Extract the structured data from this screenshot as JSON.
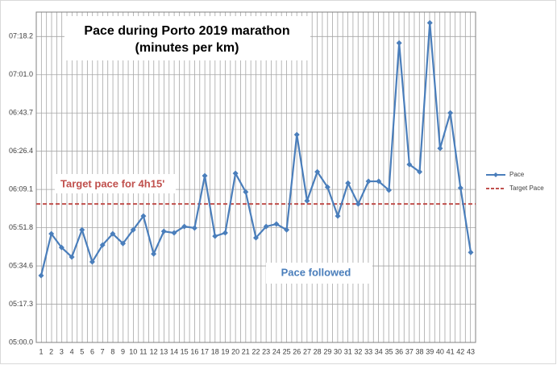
{
  "chart_data": {
    "type": "line",
    "title": "Pace during Porto 2019 marathon",
    "subtitle": "(minutes per km)",
    "categories": [
      "1",
      "2",
      "3",
      "4",
      "5",
      "6",
      "7",
      "8",
      "9",
      "10",
      "11",
      "12",
      "13",
      "14",
      "15",
      "16",
      "17",
      "18",
      "19",
      "20",
      "21",
      "22",
      "23",
      "24",
      "25",
      "26",
      "27",
      "28",
      "29",
      "30",
      "31",
      "32",
      "33",
      "34",
      "35",
      "36",
      "37",
      "38",
      "39",
      "40",
      "41",
      "42",
      "43"
    ],
    "series": [
      {
        "name": "Pace",
        "color": "#4a7ebb",
        "values": [
          330.2,
          349.1,
          342.9,
          338.6,
          350.9,
          336.4,
          344.0,
          349.1,
          344.7,
          350.9,
          357.1,
          340.0,
          350.2,
          349.5,
          352.4,
          351.7,
          375.3,
          348.0,
          349.5,
          376.4,
          368.0,
          347.3,
          352.4,
          353.5,
          350.9,
          393.9,
          364.0,
          377.1,
          370.2,
          357.1,
          372.0,
          362.6,
          372.8,
          372.8,
          368.8,
          435.3,
          380.4,
          377.1,
          444.4,
          387.7,
          403.7,
          369.8,
          340.7
        ]
      }
    ],
    "reference_line": {
      "name": "Target Pace",
      "value": 362.6,
      "color": "#c0504d"
    },
    "annotations": [
      {
        "text": "Target pace for 4h15'",
        "color": "#c0504d"
      },
      {
        "text": "Pace followed",
        "color": "#4a7ebb"
      }
    ],
    "ylim": [
      300,
      449.28
    ],
    "yticks": [
      {
        "value": 300,
        "label": "05:00.0"
      },
      {
        "value": 317.28,
        "label": "05:17.3"
      },
      {
        "value": 334.56,
        "label": "05:34.6"
      },
      {
        "value": 351.84,
        "label": "05:51.8"
      },
      {
        "value": 369.12,
        "label": "06:09.1"
      },
      {
        "value": 386.4,
        "label": "06:26.4"
      },
      {
        "value": 403.68,
        "label": "06:43.7"
      },
      {
        "value": 420.96,
        "label": "07:01.0"
      },
      {
        "value": 438.24,
        "label": "07:18.2"
      }
    ],
    "grid": true
  }
}
